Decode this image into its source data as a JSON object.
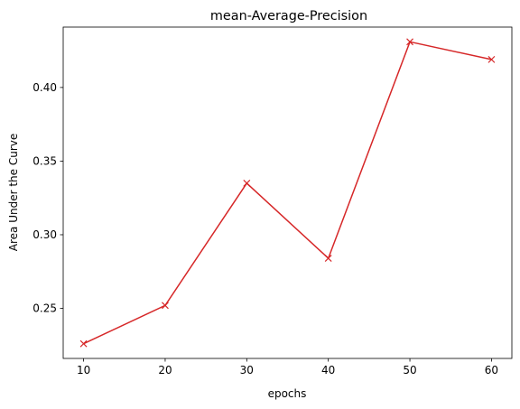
{
  "chart_data": {
    "type": "line",
    "title": "mean-Average-Precision",
    "xlabel": "epochs",
    "ylabel": "Area Under the Curve",
    "x": [
      10,
      20,
      30,
      40,
      50,
      60
    ],
    "series": [
      {
        "values": [
          0.226,
          0.252,
          0.335,
          0.284,
          0.431,
          0.419
        ]
      }
    ],
    "xlim": [
      7.5,
      62.5
    ],
    "ylim": [
      0.216,
      0.441
    ],
    "xticks": [
      10,
      20,
      30,
      40,
      50,
      60
    ],
    "xtick_labels": [
      "10",
      "20",
      "30",
      "40",
      "50",
      "60"
    ],
    "yticks": [
      0.25,
      0.3,
      0.35,
      0.4
    ],
    "ytick_labels": [
      "0.25",
      "0.30",
      "0.35",
      "0.40"
    ],
    "marker": "x",
    "line_color": "#d62728",
    "grid": false,
    "legend": false
  }
}
